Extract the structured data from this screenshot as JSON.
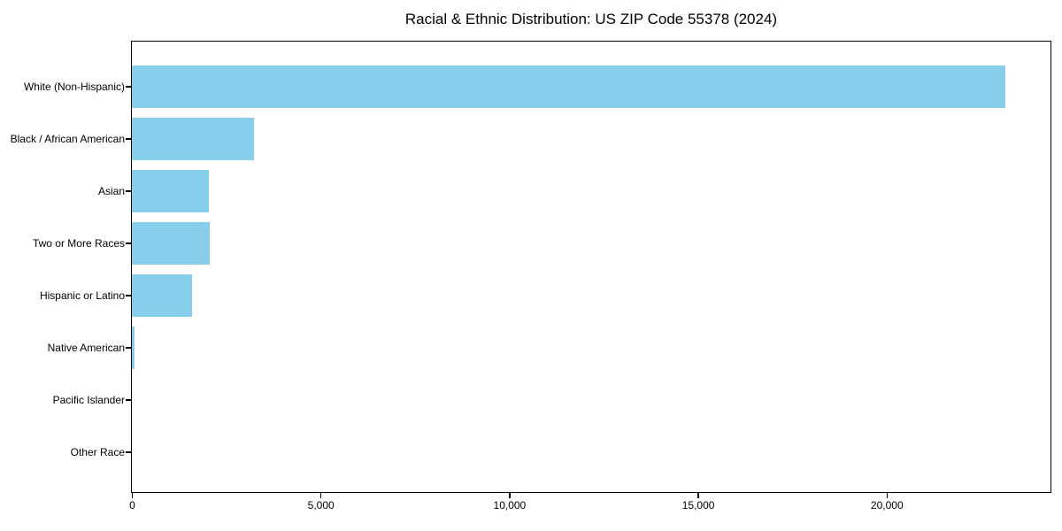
{
  "chart_data": {
    "type": "bar",
    "orientation": "horizontal",
    "title": "Racial & Ethnic Distribution: US ZIP Code 55378 (2024)",
    "categories": [
      "White (Non-Hispanic)",
      "Black / African American",
      "Asian",
      "Two or More Races",
      "Hispanic or Latino",
      "Native American",
      "Pacific Islander",
      "Other Race"
    ],
    "values": [
      23150,
      3240,
      2040,
      2060,
      1590,
      70,
      0,
      0
    ],
    "xlabel": "",
    "ylabel": "",
    "x_ticks": [
      0,
      5000,
      10000,
      15000,
      20000
    ],
    "x_tick_labels": [
      "0",
      "5,000",
      "10,000",
      "15,000",
      "20,000"
    ],
    "xlim": [
      0,
      24320
    ],
    "bar_color": "#87CEEB",
    "axis_color": "#000000",
    "background_color": "#ffffff",
    "grid": false,
    "legend": false
  }
}
